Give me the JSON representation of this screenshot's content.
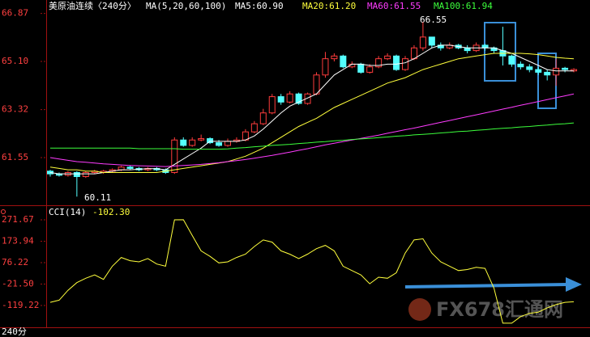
{
  "chart_data": [
    {
      "type": "candlestick",
      "title": "美原油连续〈240分〉",
      "indicator": "MA(5,20,60,100)",
      "up_color": "#ff3c3c",
      "down_color": "#54ffff",
      "candles": {
        "open": [
          61.05,
          60.95,
          60.9,
          61.0,
          60.85,
          61.0,
          61.0,
          61.05,
          61.1,
          61.2,
          61.15,
          61.1,
          61.15,
          61.1,
          61.0,
          62.2,
          62.0,
          62.2,
          62.25,
          62.1,
          62.0,
          62.15,
          62.2,
          62.5,
          62.8,
          63.2,
          63.8,
          63.6,
          63.9,
          63.55,
          63.9,
          64.6,
          65.2,
          65.3,
          64.9,
          65.0,
          64.7,
          64.9,
          65.2,
          65.3,
          64.8,
          65.2,
          65.6,
          66.0,
          65.7,
          65.6,
          65.7,
          65.6,
          65.5,
          65.7,
          65.6,
          65.5,
          65.3,
          65.0,
          64.9,
          64.8,
          64.7,
          64.6,
          64.85,
          64.75
        ],
        "high": [
          61.1,
          61.0,
          61.05,
          61.05,
          61.05,
          61.1,
          61.1,
          61.15,
          61.25,
          61.25,
          61.2,
          61.2,
          61.2,
          61.15,
          62.3,
          62.3,
          62.3,
          62.4,
          62.3,
          62.2,
          62.25,
          62.3,
          62.6,
          62.9,
          63.35,
          63.9,
          63.9,
          64.0,
          63.95,
          63.95,
          64.7,
          65.45,
          65.4,
          65.35,
          65.1,
          65.05,
          65.0,
          65.3,
          65.4,
          65.35,
          65.3,
          65.7,
          66.55,
          66.0,
          65.8,
          65.8,
          65.75,
          65.7,
          65.8,
          65.75,
          65.65,
          66.38,
          65.35,
          65.1,
          65.0,
          64.9,
          64.8,
          65.2,
          64.9,
          64.85
        ],
        "low": [
          60.85,
          60.85,
          60.85,
          60.11,
          60.8,
          60.95,
          60.95,
          61.0,
          61.05,
          61.1,
          61.05,
          61.05,
          61.05,
          60.95,
          60.95,
          61.95,
          61.95,
          62.15,
          62.05,
          61.95,
          61.95,
          62.1,
          62.15,
          62.45,
          62.75,
          63.15,
          63.5,
          63.55,
          63.5,
          63.5,
          63.85,
          64.5,
          65.1,
          64.85,
          64.85,
          64.65,
          64.65,
          64.85,
          65.15,
          64.75,
          64.75,
          65.15,
          65.5,
          65.6,
          65.5,
          65.55,
          65.55,
          65.4,
          65.45,
          65.5,
          65.4,
          64.95,
          64.9,
          64.8,
          64.7,
          64.6,
          64.4,
          64.2,
          64.7,
          64.7
        ],
        "close": [
          60.95,
          60.9,
          61.0,
          60.85,
          61.0,
          61.05,
          61.05,
          61.1,
          61.2,
          61.15,
          61.1,
          61.15,
          61.1,
          61.0,
          62.2,
          62.0,
          62.2,
          62.25,
          62.1,
          62.0,
          62.15,
          62.2,
          62.5,
          62.8,
          63.2,
          63.8,
          63.6,
          63.9,
          63.55,
          63.9,
          64.6,
          65.2,
          65.3,
          64.9,
          65.0,
          64.7,
          64.9,
          65.2,
          65.3,
          64.8,
          65.2,
          65.6,
          66.0,
          65.7,
          65.6,
          65.7,
          65.6,
          65.5,
          65.7,
          65.6,
          65.5,
          65.3,
          65.0,
          64.9,
          64.8,
          64.7,
          64.6,
          64.85,
          64.8,
          64.8
        ]
      },
      "series": [
        {
          "name": "MA5:60.90",
          "color": "#ffffff",
          "values": [
            61.0,
            60.95,
            60.95,
            60.95,
            60.95,
            60.95,
            61.0,
            61.05,
            61.1,
            61.1,
            61.12,
            61.14,
            61.14,
            61.1,
            61.3,
            61.5,
            61.7,
            61.9,
            62.15,
            62.15,
            62.15,
            62.15,
            62.2,
            62.35,
            62.6,
            62.9,
            63.2,
            63.45,
            63.6,
            63.75,
            63.9,
            64.25,
            64.6,
            64.8,
            65.0,
            65.0,
            64.95,
            64.95,
            65.0,
            65.0,
            65.05,
            65.2,
            65.4,
            65.6,
            65.7,
            65.7,
            65.65,
            65.6,
            65.6,
            65.6,
            65.6,
            65.5,
            65.4,
            65.25,
            65.1,
            64.95,
            64.8,
            64.75,
            64.75,
            64.75
          ]
        },
        {
          "name": "MA20:61.20",
          "color": "#ffff3c",
          "values": [
            61.2,
            61.15,
            61.1,
            61.1,
            61.05,
            61.05,
            61.0,
            61.0,
            61.0,
            61.0,
            61.0,
            61.0,
            61.0,
            61.05,
            61.1,
            61.15,
            61.2,
            61.25,
            61.3,
            61.35,
            61.4,
            61.5,
            61.6,
            61.75,
            61.9,
            62.1,
            62.3,
            62.5,
            62.7,
            62.85,
            63.0,
            63.2,
            63.4,
            63.55,
            63.7,
            63.85,
            64.0,
            64.15,
            64.3,
            64.4,
            64.5,
            64.65,
            64.8,
            64.9,
            65.0,
            65.1,
            65.2,
            65.25,
            65.3,
            65.35,
            65.4,
            65.4,
            65.4,
            65.4,
            65.38,
            65.35,
            65.3,
            65.25,
            65.22,
            65.2
          ]
        },
        {
          "name": "MA60:61.55",
          "color": "#ff3cff",
          "values": [
            61.55,
            61.5,
            61.45,
            61.4,
            61.38,
            61.35,
            61.32,
            61.3,
            61.28,
            61.26,
            61.25,
            61.24,
            61.23,
            61.22,
            61.24,
            61.26,
            61.28,
            61.3,
            61.33,
            61.36,
            61.4,
            61.44,
            61.48,
            61.53,
            61.58,
            61.63,
            61.69,
            61.75,
            61.82,
            61.88,
            61.95,
            62.02,
            62.08,
            62.14,
            62.2,
            62.26,
            62.32,
            62.38,
            62.45,
            62.51,
            62.58,
            62.64,
            62.71,
            62.78,
            62.85,
            62.92,
            62.99,
            63.06,
            63.13,
            63.2,
            63.27,
            63.34,
            63.41,
            63.48,
            63.55,
            63.62,
            63.69,
            63.76,
            63.83,
            63.9
          ]
        },
        {
          "name": "MA100:61.94",
          "color": "#3cff3c",
          "values": [
            61.9,
            61.9,
            61.9,
            61.9,
            61.9,
            61.9,
            61.9,
            61.9,
            61.9,
            61.9,
            61.88,
            61.88,
            61.88,
            61.88,
            61.88,
            61.86,
            61.86,
            61.86,
            61.86,
            61.86,
            61.87,
            61.9,
            61.92,
            61.95,
            61.97,
            62.0,
            62.02,
            62.04,
            62.07,
            62.09,
            62.12,
            62.14,
            62.17,
            62.19,
            62.22,
            62.24,
            62.26,
            62.29,
            62.31,
            62.34,
            62.36,
            62.39,
            62.41,
            62.43,
            62.46,
            62.48,
            62.51,
            62.53,
            62.56,
            62.58,
            62.61,
            62.63,
            62.65,
            62.68,
            62.7,
            62.73,
            62.75,
            62.78,
            62.8,
            62.83
          ]
        }
      ],
      "annotations": [
        "66.55",
        "60.11"
      ],
      "ylim": [
        59.91,
        66.92
      ],
      "yticks": [
        66.87,
        {
          "value": 65.1,
          "label": "65.10"
        },
        63.32,
        61.55
      ]
    },
    {
      "type": "line",
      "title": "CCI(14)",
      "subtitle": "-102.30",
      "series": [
        {
          "name": "CCI(14)",
          "color": "#ffff3c",
          "values": [
            -105,
            -95,
            -50,
            -15,
            5,
            20,
            0,
            60,
            100,
            85,
            80,
            95,
            70,
            60,
            271.67,
            272,
            200,
            130,
            105,
            75,
            80,
            100,
            115,
            150,
            180,
            170,
            130,
            115,
            95,
            115,
            140,
            155,
            130,
            60,
            40,
            20,
            -20,
            10,
            5,
            30,
            120,
            180,
            185,
            120,
            80,
            60,
            40,
            45,
            55,
            50,
            -40,
            -200,
            -200,
            -170,
            -155,
            -150,
            -130,
            -115,
            -105,
            -102.3
          ]
        }
      ],
      "ylim": [
        -218.8,
        323.3
      ],
      "yticks": [
        271.67,
        173.94,
        76.22,
        {
          "value": -21.5,
          "label": "-21.50"
        },
        -119.22
      ]
    }
  ],
  "footer": "240分",
  "watermark": "FX678汇通网"
}
